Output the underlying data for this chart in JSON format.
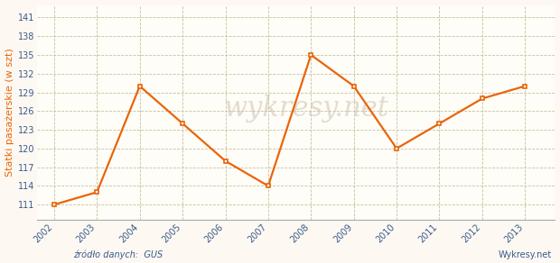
{
  "years": [
    2002,
    2003,
    2004,
    2005,
    2006,
    2007,
    2008,
    2009,
    2010,
    2011,
    2012,
    2013
  ],
  "values": [
    111,
    113,
    130,
    124,
    118,
    114,
    135,
    130,
    120,
    124,
    128,
    130
  ],
  "line_color": "#e8650a",
  "marker_color": "#e8650a",
  "ylabel": "Statki pasażerskie (w szt)",
  "yticks": [
    111,
    114,
    117,
    120,
    123,
    126,
    129,
    132,
    135,
    138,
    141
  ],
  "ylim": [
    108.5,
    143
  ],
  "xlim": [
    2001.6,
    2013.7
  ],
  "bg_color": "#fdf9f2",
  "plot_bg_color": "#fffdf7",
  "grid_color": "#c8c0a0",
  "axis_label_color": "#3a5a8c",
  "source_text": "źródło danych:  GUS",
  "watermark_text": "wykresy.net",
  "footer_right": "Wykresy.net"
}
